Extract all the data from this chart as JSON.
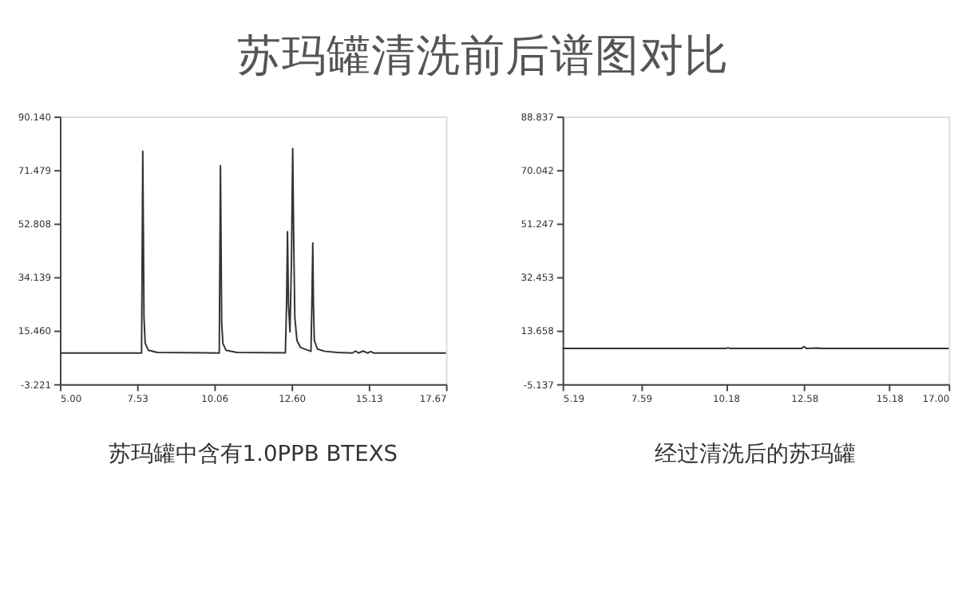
{
  "chart_data": [
    {
      "type": "line",
      "title": "苏玛罐清洗前后谱图对比",
      "annotations": [
        "苏玛罐中含有1.0PPB BTEXS"
      ],
      "x": [
        5.0,
        7.68,
        7.7,
        7.72,
        7.74,
        7.76,
        7.8,
        7.9,
        8.2,
        10.23,
        10.25,
        10.27,
        10.29,
        10.31,
        10.35,
        10.45,
        10.8,
        12.4,
        12.44,
        12.47,
        12.5,
        12.55,
        12.6,
        12.64,
        12.67,
        12.71,
        12.78,
        12.9,
        13.24,
        13.27,
        13.3,
        13.32,
        13.35,
        13.45,
        13.7,
        14.1,
        14.6,
        14.7,
        14.8,
        14.95,
        15.1,
        15.2,
        15.3,
        17.67
      ],
      "series": [
        {
          "color": "#333333",
          "values": [
            7.6,
            7.6,
            40,
            78,
            50,
            20,
            11,
            8.6,
            7.8,
            7.6,
            40,
            73,
            45,
            18,
            11,
            8.6,
            7.8,
            7.7,
            25,
            50,
            25,
            15,
            40,
            79,
            50,
            20,
            12,
            9.5,
            8.2,
            25,
            46,
            25,
            12,
            9,
            8.2,
            7.8,
            7.6,
            8.3,
            7.6,
            8.3,
            7.6,
            8.1,
            7.6,
            7.6
          ]
        }
      ],
      "xlim": [
        5.0,
        17.67
      ],
      "ylim": [
        -3.221,
        90.14
      ],
      "xticks": [
        {
          "value": 5,
          "label": "5.00"
        },
        7.53,
        10.06,
        {
          "value": 12.6,
          "label": "12.60"
        },
        15.13,
        17.67
      ],
      "yticks": [
        -3.221,
        {
          "value": 15.46,
          "label": "15.460"
        },
        34.139,
        52.808,
        71.479,
        {
          "value": 90.14,
          "label": "90.140"
        }
      ]
    },
    {
      "type": "line",
      "annotations": [
        "经过清洗后的苏玛罐"
      ],
      "x": [
        5.19,
        10.19,
        10.25,
        10.3,
        12.5,
        12.58,
        12.65,
        13.0,
        13.1,
        17.0
      ],
      "series": [
        {
          "color": "#333333",
          "values": [
            7.4,
            7.4,
            7.6,
            7.4,
            7.4,
            8.0,
            7.4,
            7.5,
            7.4,
            7.4
          ]
        }
      ],
      "xlim": [
        5.19,
        17.0
      ],
      "ylim": [
        -5.137,
        88.837
      ],
      "xticks": [
        5.19,
        7.59,
        10.18,
        12.58,
        15.18,
        {
          "value": 17,
          "label": "17.00"
        }
      ],
      "yticks": [
        -5.137,
        13.658,
        32.453,
        51.247,
        70.042,
        88.837
      ]
    }
  ]
}
